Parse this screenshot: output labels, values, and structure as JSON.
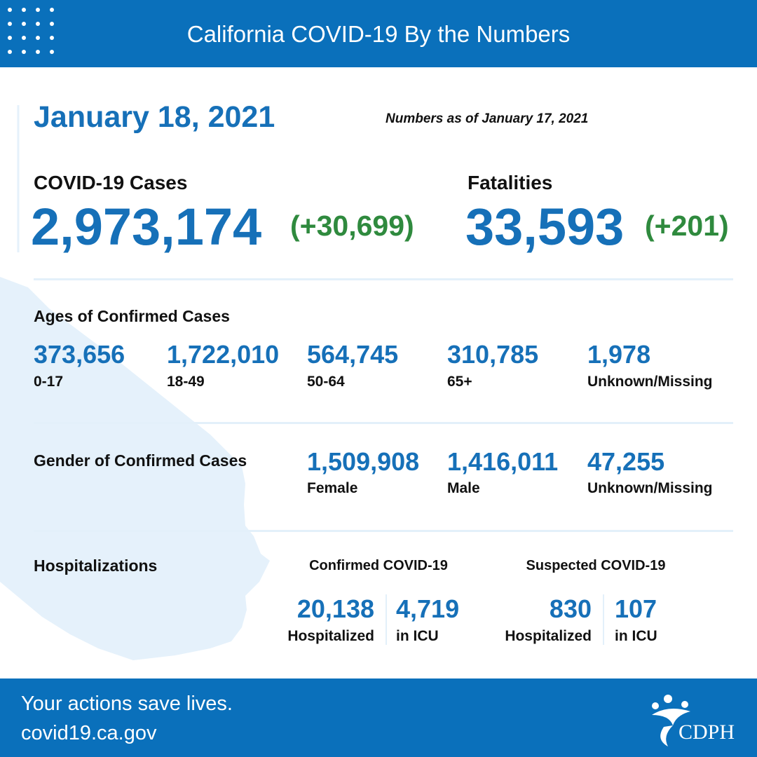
{
  "header": {
    "title": "California COVID-19 By the Numbers"
  },
  "date": "January 18, 2021",
  "as_of": "Numbers as of January 17, 2021",
  "cases": {
    "label": "COVID-19 Cases",
    "total": "2,973,174",
    "change": "(+30,699)"
  },
  "fatalities": {
    "label": "Fatalities",
    "total": "33,593",
    "change": "(+201)"
  },
  "ages": {
    "title": "Ages of Confirmed Cases",
    "groups": [
      {
        "value": "373,656",
        "label": "0-17"
      },
      {
        "value": "1,722,010",
        "label": "18-49"
      },
      {
        "value": "564,745",
        "label": "50-64"
      },
      {
        "value": "310,785",
        "label": "65+"
      },
      {
        "value": "1,978",
        "label": "Unknown/Missing"
      }
    ]
  },
  "gender": {
    "title": "Gender of Confirmed Cases",
    "groups": [
      {
        "value": "1,509,908",
        "label": "Female"
      },
      {
        "value": "1,416,011",
        "label": "Male"
      },
      {
        "value": "47,255",
        "label": "Unknown/Missing"
      }
    ]
  },
  "hospitalizations": {
    "title": "Hospitalizations",
    "confirmed": {
      "title": "Confirmed COVID-19",
      "hospitalized": {
        "value": "20,138",
        "label": "Hospitalized"
      },
      "icu": {
        "value": "4,719",
        "label": "in ICU"
      }
    },
    "suspected": {
      "title": "Suspected COVID-19",
      "hospitalized": {
        "value": "830",
        "label": "Hospitalized"
      },
      "icu": {
        "value": "107",
        "label": "in ICU"
      }
    }
  },
  "footer": {
    "lines": [
      "Your actions save lives.",
      "covid19.ca.gov"
    ],
    "logo": "CDPH"
  }
}
